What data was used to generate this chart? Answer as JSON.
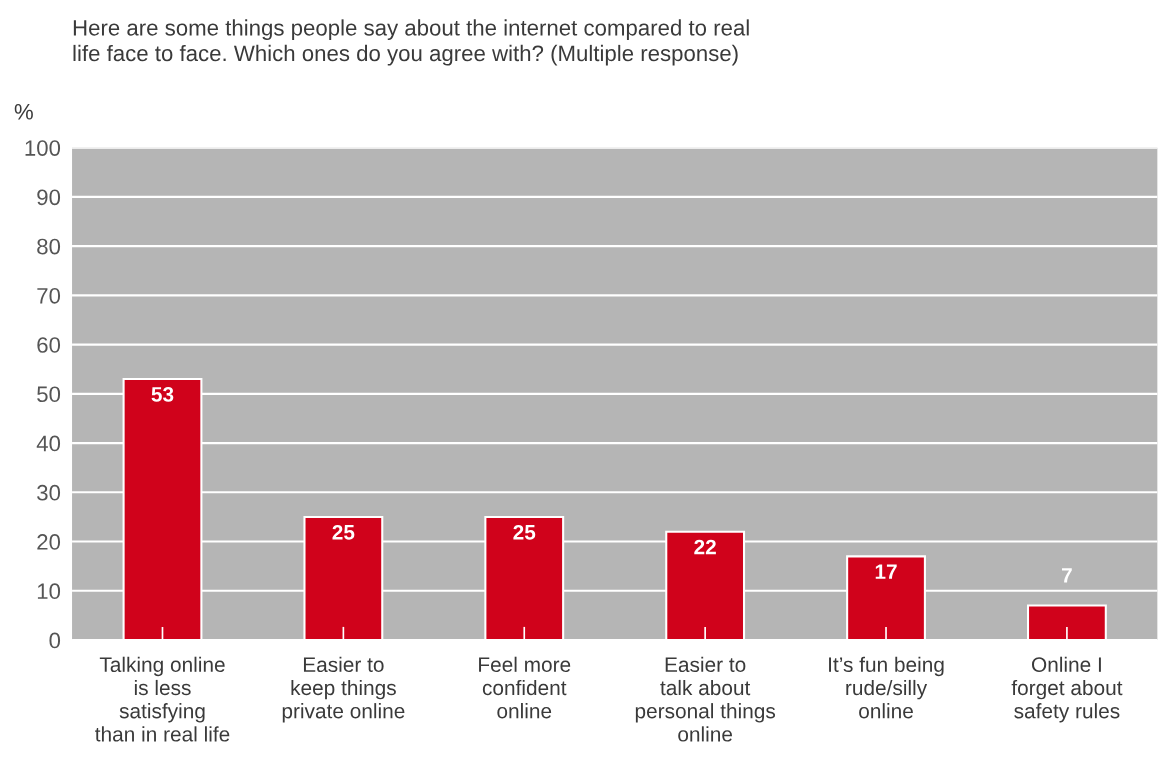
{
  "chart_data": {
    "type": "bar",
    "title": "Here are some things people say about the internet compared to real\nlife face to face. Which ones do you agree with? (Multiple response)",
    "ylabel": "%",
    "categories": [
      "Talking online\nis less\nsatisfying\nthan in real life",
      "Easier to\nkeep things\nprivate online",
      "Feel more\nconfident\nonline",
      "Easier to\ntalk about\npersonal things\nonline",
      "It’s fun being\nrude/silly\nonline",
      "Online I\nforget about\nsafety rules"
    ],
    "values": [
      53,
      25,
      25,
      22,
      17,
      7
    ],
    "color": "#d0021b",
    "ylim": [
      0,
      100
    ],
    "yticks": [
      0,
      10,
      20,
      30,
      40,
      50,
      60,
      70,
      80,
      90,
      100
    ],
    "grid": "y",
    "data_labels": true
  }
}
